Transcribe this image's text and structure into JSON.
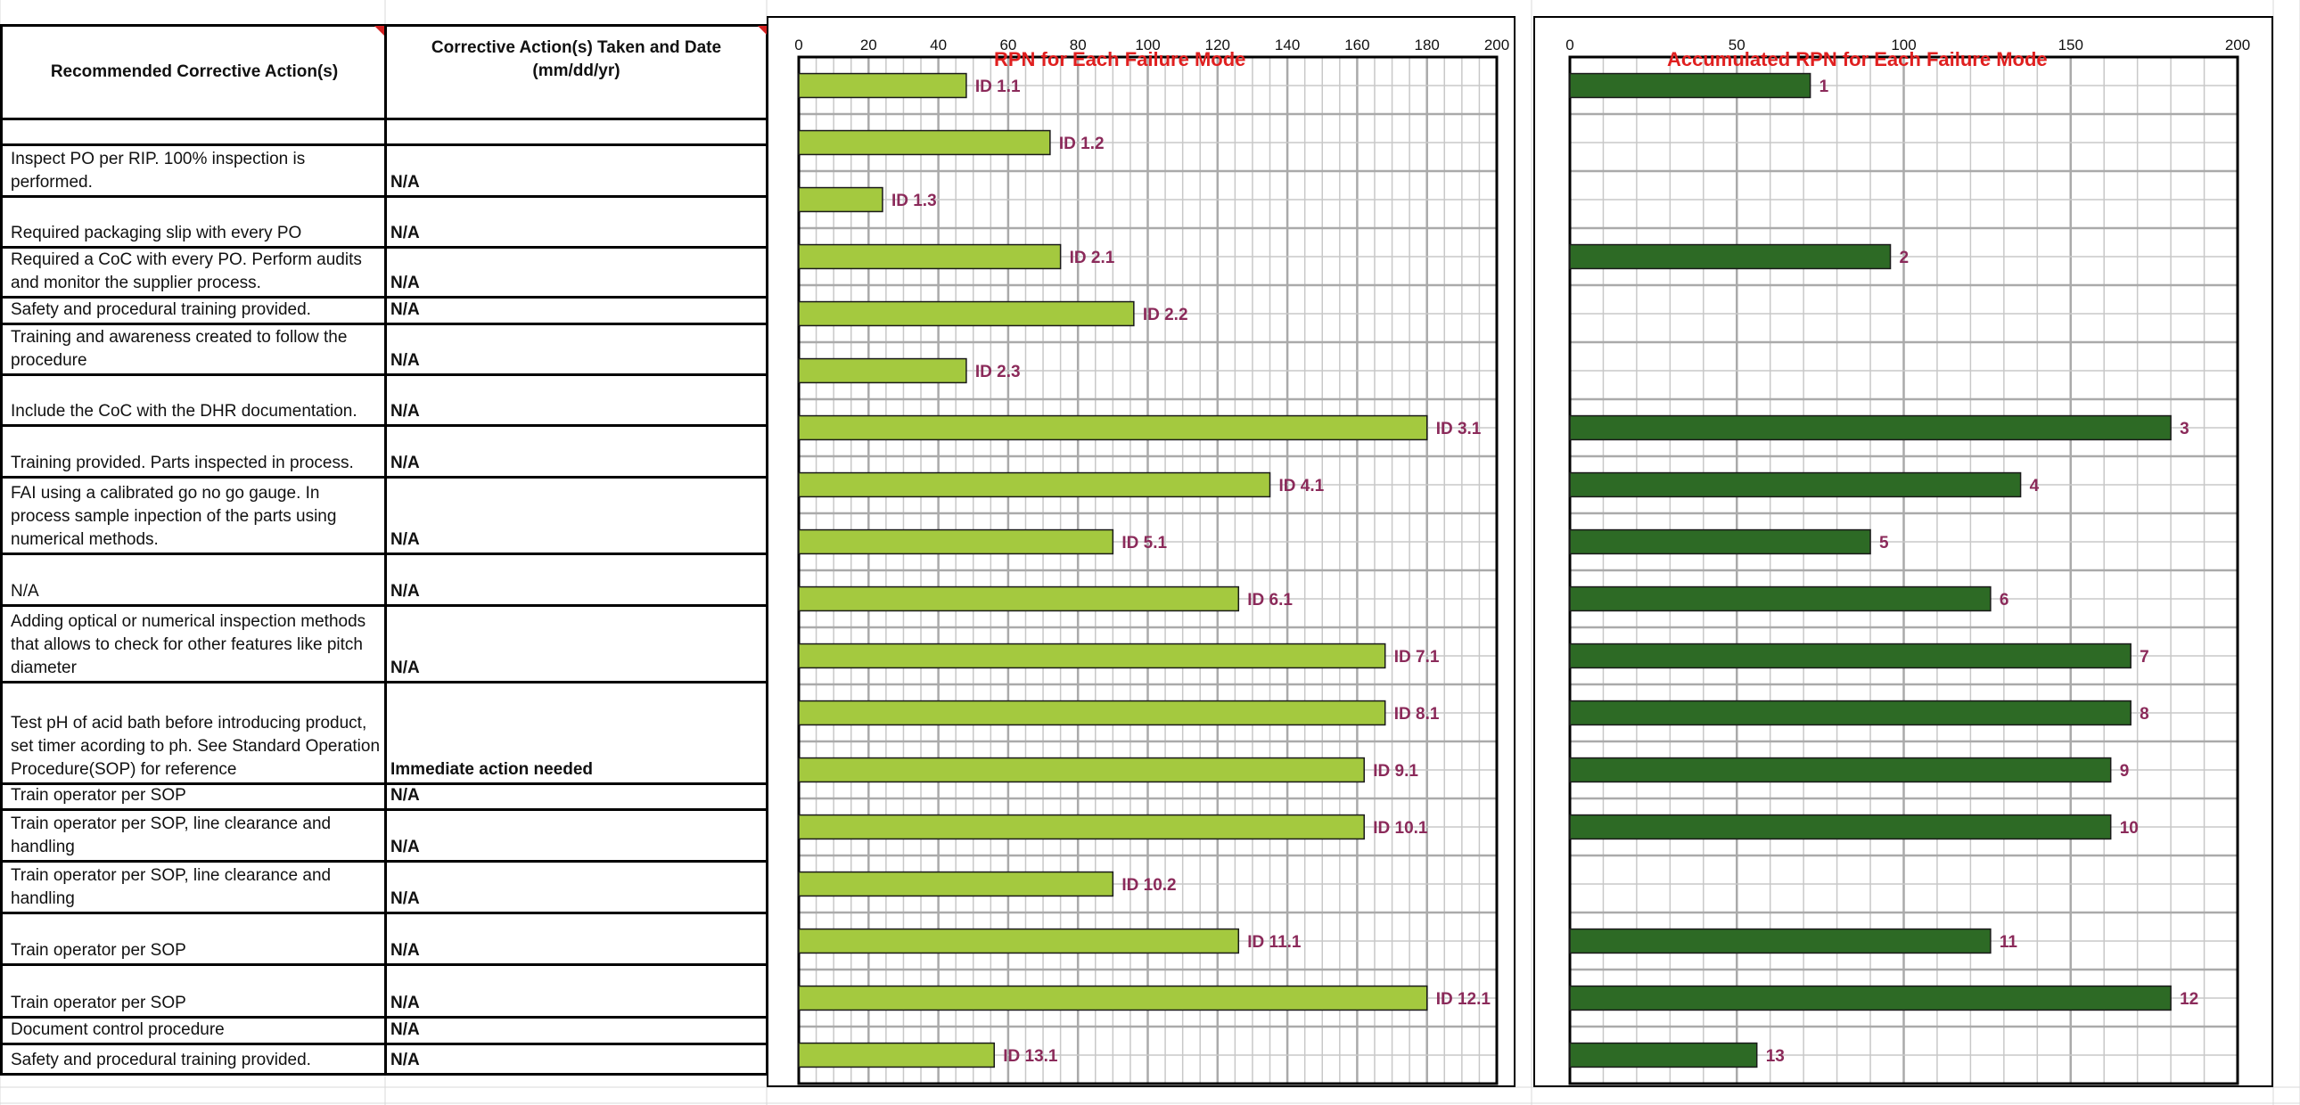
{
  "table": {
    "headers": {
      "recommended": "Recommended Corrective Action(s)",
      "taken": "Corrective Action(s) Taken and Date (mm/dd/yr)"
    },
    "rows": [
      {
        "recommended": "",
        "taken": ""
      },
      {
        "recommended": "Inspect PO per RIP. 100% inspection is performed.",
        "taken": "N/A"
      },
      {
        "recommended": "Required packaging slip with every PO",
        "taken": "N/A"
      },
      {
        "recommended": "Required a CoC with every PO. Perform audits and monitor the supplier process.",
        "taken": "N/A"
      },
      {
        "recommended": "Safety and procedural training provided.",
        "taken": "N/A"
      },
      {
        "recommended": "Training and awareness created to follow the procedure",
        "taken": "N/A"
      },
      {
        "recommended": "Include the CoC with the DHR documentation.",
        "taken": "N/A"
      },
      {
        "recommended": "Training provided. Parts inspected in process.",
        "taken": "N/A"
      },
      {
        "recommended": "FAI using a calibrated go no go gauge. In process sample inpection of the parts using numerical methods.",
        "taken": "N/A"
      },
      {
        "recommended": "N/A",
        "taken": "N/A"
      },
      {
        "recommended": "Adding optical or numerical inspection methods that allows to check for other features like pitch diameter",
        "taken": "N/A"
      },
      {
        "recommended": "Test pH of acid bath before introducing product, set timer acording to ph. See Standard Operation Procedure(SOP) for reference",
        "taken": "Immediate action needed"
      },
      {
        "recommended": "Train operator per SOP",
        "taken": "N/A"
      },
      {
        "recommended": "Train operator per SOP, line clearance and handling",
        "taken": "N/A"
      },
      {
        "recommended": "Train operator per SOP, line clearance and handling",
        "taken": "N/A"
      },
      {
        "recommended": "Train operator per SOP",
        "taken": "N/A"
      },
      {
        "recommended": "Train operator per SOP",
        "taken": "N/A"
      },
      {
        "recommended": "Document control procedure",
        "taken": "N/A"
      },
      {
        "recommended": "Safety and procedural training provided.",
        "taken": "N/A"
      }
    ]
  },
  "chart_data": [
    {
      "type": "bar",
      "orientation": "horizontal",
      "title": "RPN for Each Failure Mode",
      "xlim": [
        0,
        200
      ],
      "x_ticks": [
        0,
        20,
        40,
        60,
        80,
        100,
        120,
        140,
        160,
        180,
        200
      ],
      "grid": true,
      "bar_color": "#a4c93f",
      "label_color": "#8b2a5a",
      "categories": [
        "ID 1.1",
        "ID 1.2",
        "ID 1.3",
        "ID 2.1",
        "ID 2.2",
        "ID 2.3",
        "ID 3.1",
        "ID 4.1",
        "ID 5.1",
        "ID 6.1",
        "ID 7.1",
        "ID 8.1",
        "ID 9.1",
        "ID 10.1",
        "ID 10.2",
        "ID 11.1",
        "ID 12.1",
        "ID 13.1"
      ],
      "values": [
        48,
        72,
        24,
        75,
        96,
        48,
        180,
        135,
        90,
        126,
        168,
        168,
        162,
        162,
        90,
        126,
        180,
        56
      ]
    },
    {
      "type": "bar",
      "orientation": "horizontal",
      "title": "Accumulated RPN for Each Failure Mode",
      "xlim": [
        0,
        200
      ],
      "x_ticks": [
        0,
        50,
        100,
        150,
        200
      ],
      "grid": true,
      "bar_color": "#2d6a25",
      "label_color": "#8b2a5a",
      "slots": 18,
      "categories": [
        "1",
        "2",
        "3",
        "4",
        "5",
        "6",
        "7",
        "8",
        "9",
        "10",
        "11",
        "12",
        "13"
      ],
      "slot_index": [
        0,
        3,
        6,
        7,
        8,
        9,
        10,
        11,
        12,
        13,
        15,
        16,
        17
      ],
      "values": [
        72,
        96,
        180,
        135,
        90,
        126,
        168,
        168,
        162,
        162,
        126,
        180,
        56
      ]
    }
  ]
}
